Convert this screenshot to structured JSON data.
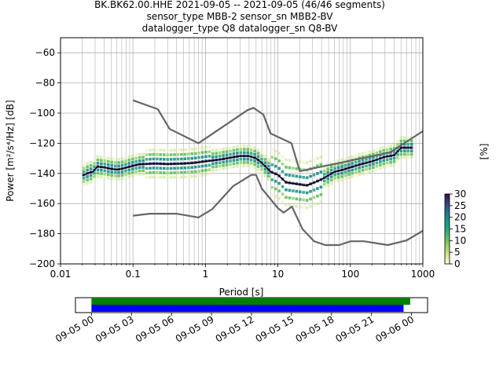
{
  "title": {
    "line1": "BK.BK62.00.HHE   2021-09-05 -- 2021-09-05  (46/46 segments)",
    "line2": "sensor_type MBB-2 sensor_sn MBB2-BV",
    "line3": "datalogger_type Q8 datalogger_sn Q8-BV"
  },
  "chart_data": {
    "type": "line",
    "xlabel": "Period [s]",
    "ylabel": "Power [m²/s⁴/Hz] [dB]",
    "xscale": "log",
    "xlim": [
      0.01,
      1000
    ],
    "ylim": [
      -200,
      -50
    ],
    "x_ticks": [
      {
        "value": 0.01,
        "label": "0.01"
      },
      {
        "value": 0.1,
        "label": "0.1"
      },
      {
        "value": 1,
        "label": "1"
      },
      {
        "value": 10,
        "label": "10"
      },
      {
        "value": 100,
        "label": "100"
      },
      {
        "value": 1000,
        "label": "1000"
      }
    ],
    "y_ticks": [
      -60,
      -80,
      -100,
      -120,
      -140,
      -160,
      -180,
      -200
    ],
    "grid": true,
    "series": [
      {
        "role": "high-noise-model",
        "color": "#666666",
        "points": [
          [
            0.1,
            -91.5
          ],
          [
            0.22,
            -97.4
          ],
          [
            0.32,
            -110.5
          ],
          [
            0.8,
            -120
          ],
          [
            3.8,
            -98
          ],
          [
            4.6,
            -96.5
          ],
          [
            6.3,
            -101
          ],
          [
            7.9,
            -113.5
          ],
          [
            15.4,
            -120
          ],
          [
            20,
            -138.5
          ],
          [
            354.8,
            -126
          ],
          [
            1000,
            -112
          ]
        ]
      },
      {
        "role": "low-noise-model",
        "color": "#666666",
        "points": [
          [
            0.1,
            -168
          ],
          [
            0.17,
            -166.7
          ],
          [
            0.4,
            -166.7
          ],
          [
            0.8,
            -169.2
          ],
          [
            1.24,
            -163.7
          ],
          [
            2.4,
            -148.5
          ],
          [
            4.3,
            -141
          ],
          [
            5,
            -141
          ],
          [
            6,
            -150
          ],
          [
            10,
            -163
          ],
          [
            12,
            -166
          ],
          [
            15.6,
            -162
          ],
          [
            21.9,
            -177
          ],
          [
            31.6,
            -185
          ],
          [
            45,
            -187.5
          ],
          [
            70,
            -187.5
          ],
          [
            101,
            -185
          ],
          [
            154,
            -185
          ],
          [
            328,
            -187.5
          ],
          [
            600,
            -184.4
          ],
          [
            1000,
            -178
          ]
        ]
      },
      {
        "role": "mean",
        "color": "#000000",
        "points": [
          [
            0.02,
            -141.5
          ],
          [
            0.025,
            -139.5
          ],
          [
            0.028,
            -139
          ],
          [
            0.032,
            -135.5
          ],
          [
            0.04,
            -136
          ],
          [
            0.05,
            -137
          ],
          [
            0.06,
            -137.5
          ],
          [
            0.07,
            -137
          ],
          [
            0.09,
            -135.5
          ],
          [
            0.12,
            -134
          ],
          [
            0.2,
            -133.5
          ],
          [
            0.3,
            -133.8
          ],
          [
            0.5,
            -133.5
          ],
          [
            0.7,
            -133
          ],
          [
            1,
            -132
          ],
          [
            1.5,
            -131
          ],
          [
            2,
            -130
          ],
          [
            3,
            -128.5
          ],
          [
            4,
            -128.5
          ],
          [
            5,
            -130
          ],
          [
            6,
            -133
          ],
          [
            8,
            -139
          ],
          [
            10,
            -141
          ],
          [
            13,
            -146
          ],
          [
            18,
            -147
          ],
          [
            25,
            -148
          ],
          [
            32,
            -146
          ],
          [
            40,
            -144
          ],
          [
            60,
            -139
          ],
          [
            80,
            -137.5
          ],
          [
            100,
            -136
          ],
          [
            150,
            -133.5
          ],
          [
            200,
            -132
          ],
          [
            300,
            -129
          ],
          [
            400,
            -128
          ],
          [
            500,
            -123
          ],
          [
            700,
            -123
          ]
        ]
      }
    ],
    "colorbar": {
      "label": "[%]",
      "ticks": [
        0,
        5,
        10,
        15,
        20,
        25,
        30
      ],
      "vmin": 0,
      "vmax": 30
    },
    "coverage": {
      "ticks": [
        "09-05 00",
        "09-05 03",
        "09-05 06",
        "09-05 09",
        "09-05 12",
        "09-05 15",
        "09-05 18",
        "09-05 21",
        "09-06 00"
      ],
      "span_hours": [
        -1.2,
        25.2
      ],
      "bars": [
        {
          "color": "#008000",
          "start": 0,
          "end": 23.9
        },
        {
          "color": "#0000ff",
          "start": 0,
          "end": 23.4
        }
      ]
    }
  }
}
